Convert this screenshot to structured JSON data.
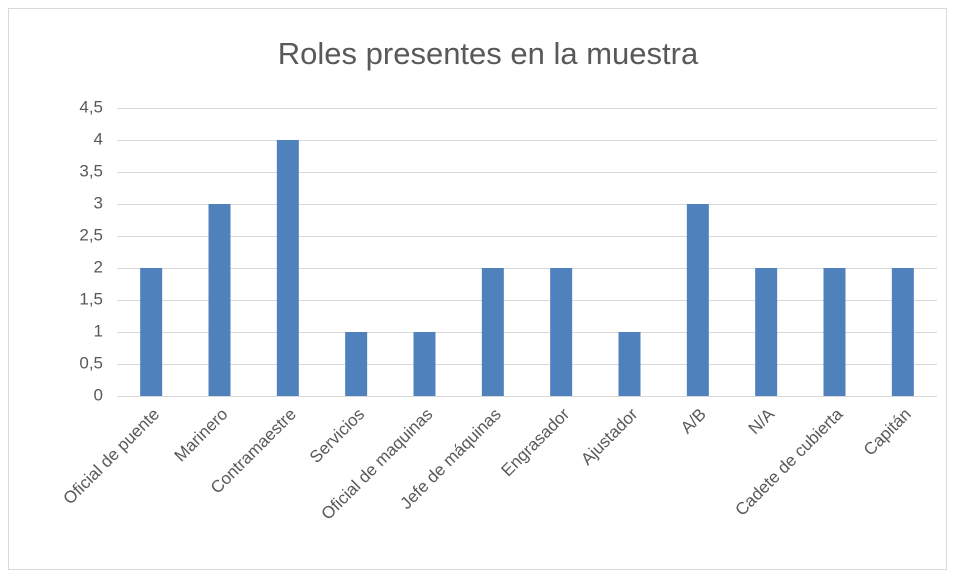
{
  "chart_data": {
    "type": "bar",
    "title": "Roles presentes en la muestra",
    "categories": [
      "Oficial de puente",
      "Marinero",
      "Contramaestre",
      "Servicios",
      "Oficial de maquinas",
      "Jefe de máquinas",
      "Engrasador",
      "Ajustador",
      "A/B",
      "N/A",
      "Cadete de cubierta",
      "Capitán"
    ],
    "values": [
      2,
      3,
      4,
      1,
      1,
      2,
      2,
      1,
      3,
      2,
      2,
      2
    ],
    "color": "#4f81bd",
    "ylim": [
      0,
      4.5
    ],
    "yticks": [
      0,
      {
        "value": 0.5,
        "label": "0,5"
      },
      1,
      {
        "value": 1.5,
        "label": "1,5"
      },
      2,
      {
        "value": 2.5,
        "label": "2,5"
      },
      3,
      {
        "value": 3.5,
        "label": "3,5"
      },
      4,
      {
        "value": 4.5,
        "label": "4,5"
      }
    ],
    "grid": true
  }
}
